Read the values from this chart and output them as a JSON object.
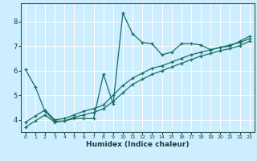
{
  "xlabel": "Humidex (Indice chaleur)",
  "bg_color": "#cceeff",
  "line_color": "#1a6e60",
  "grid_color": "#ffffff",
  "xlim": [
    -0.5,
    23.5
  ],
  "ylim": [
    3.5,
    8.75
  ],
  "yticks": [
    4,
    5,
    6,
    7,
    8
  ],
  "xticks": [
    0,
    1,
    2,
    3,
    4,
    5,
    6,
    7,
    8,
    9,
    10,
    11,
    12,
    13,
    14,
    15,
    16,
    17,
    18,
    19,
    20,
    21,
    22,
    23
  ],
  "series1_x": [
    0,
    1,
    2,
    3,
    4,
    5,
    6,
    7,
    8,
    9,
    10,
    11,
    12,
    13,
    14,
    15,
    16,
    17,
    18,
    19,
    20,
    21,
    22,
    23
  ],
  "series1_y": [
    6.05,
    5.35,
    4.35,
    3.95,
    3.95,
    4.05,
    4.05,
    4.05,
    5.85,
    4.65,
    8.35,
    7.5,
    7.15,
    7.1,
    6.65,
    6.75,
    7.1,
    7.1,
    7.05,
    6.85,
    6.95,
    7.0,
    7.2,
    7.4
  ],
  "series2_x": [
    0,
    1,
    2,
    3,
    4,
    5,
    6,
    7,
    8,
    9,
    10,
    11,
    12,
    13,
    14,
    15,
    16,
    17,
    18,
    19,
    20,
    21,
    22,
    23
  ],
  "series2_y": [
    3.9,
    4.15,
    4.4,
    4.0,
    4.05,
    4.2,
    4.35,
    4.45,
    4.6,
    5.0,
    5.4,
    5.7,
    5.9,
    6.1,
    6.2,
    6.35,
    6.5,
    6.65,
    6.75,
    6.85,
    6.95,
    7.05,
    7.15,
    7.3
  ],
  "series3_x": [
    0,
    1,
    2,
    3,
    4,
    5,
    6,
    7,
    8,
    9,
    10,
    11,
    12,
    13,
    14,
    15,
    16,
    17,
    18,
    19,
    20,
    21,
    22,
    23
  ],
  "series3_y": [
    3.7,
    3.95,
    4.2,
    3.9,
    3.95,
    4.1,
    4.2,
    4.3,
    4.45,
    4.75,
    5.1,
    5.45,
    5.65,
    5.85,
    6.0,
    6.15,
    6.3,
    6.45,
    6.6,
    6.7,
    6.82,
    6.9,
    7.02,
    7.2
  ]
}
